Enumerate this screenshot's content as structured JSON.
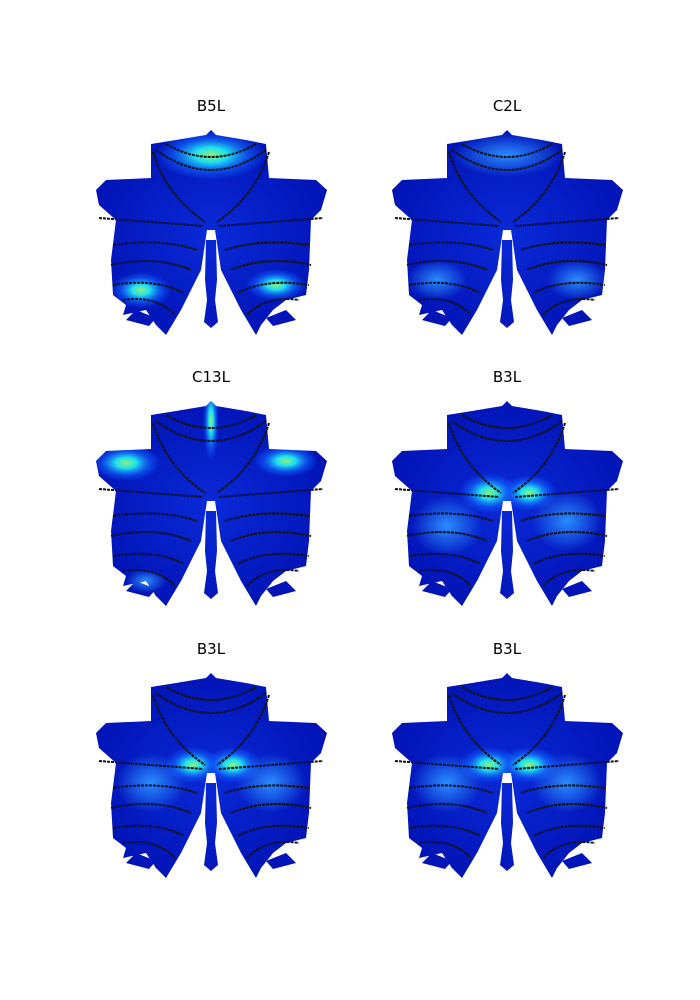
{
  "panels": [
    {
      "title": "B5L"
    },
    {
      "title": "C2L"
    },
    {
      "title": "C13L"
    },
    {
      "title": "B3L"
    },
    {
      "title": "B3L"
    },
    {
      "title": "B3L"
    }
  ]
}
